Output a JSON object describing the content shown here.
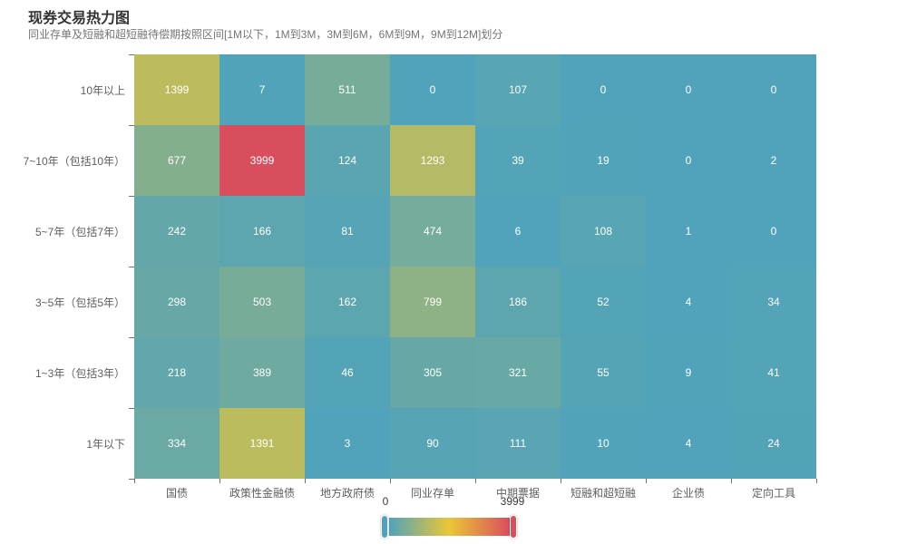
{
  "title": "现券交易热力图",
  "subtitle": "同业存单及短融和超短融待偿期按照区间[1M以下，1M到3M，3M到6M，6M到9M，9M到12M]划分",
  "chart_data": {
    "type": "heatmap",
    "title": "现券交易热力图",
    "subtitle": "同业存单及短融和超短融待偿期按照区间[1M以下，1M到3M，3M到6M，6M到9M，9M到12M]划分",
    "x_categories": [
      "国债",
      "政策性金融债",
      "地方政府债",
      "同业存单",
      "中期票据",
      "短融和超短融",
      "企业债",
      "定向工具"
    ],
    "y_categories": [
      "10年以上",
      "7~10年（包括10年）",
      "5~7年（包括7年）",
      "3~5年（包括5年）",
      "1~3年（包括3年）",
      "1年以下"
    ],
    "rows": [
      [
        1399,
        7,
        511,
        0,
        107,
        0,
        0,
        0
      ],
      [
        677,
        3999,
        124,
        1293,
        39,
        19,
        0,
        2
      ],
      [
        242,
        166,
        81,
        474,
        6,
        108,
        1,
        0
      ],
      [
        298,
        503,
        162,
        799,
        186,
        52,
        4,
        34
      ],
      [
        218,
        389,
        46,
        305,
        321,
        55,
        9,
        41
      ],
      [
        334,
        1391,
        3,
        90,
        111,
        10,
        4,
        24
      ]
    ],
    "visual_map": {
      "min": 0,
      "max": 3999,
      "min_label": "0",
      "max_label": "3999",
      "orient": "horizontal",
      "colors": [
        "#50a3ba",
        "#eac736",
        "#d94e5d"
      ]
    },
    "cell_label_color": "#ffffff",
    "grid": "off",
    "legend_position": "bottom-center"
  }
}
